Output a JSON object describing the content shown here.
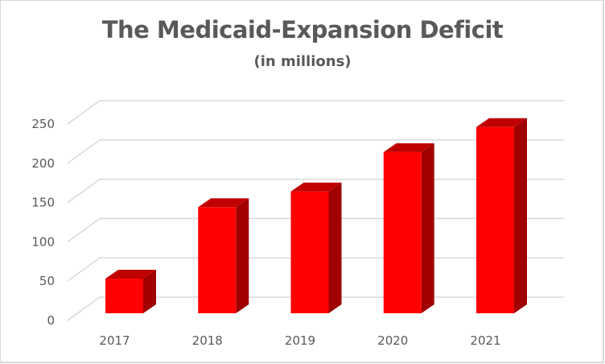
{
  "chart_data": {
    "type": "bar",
    "style": "3d-column",
    "title": "The Medicaid-Expansion Deficit",
    "subtitle": "(in millions)",
    "categories": [
      "2017",
      "2018",
      "2019",
      "2020",
      "2021"
    ],
    "values": [
      44,
      135,
      155,
      205,
      237
    ],
    "xlabel": "",
    "ylabel": "",
    "ylim": [
      0,
      250
    ],
    "yticks": [
      "0",
      "50",
      "100",
      "150",
      "200",
      "250"
    ],
    "grid": true,
    "legend": "none",
    "colors": {
      "front": "#ff0000",
      "top": "#c00000",
      "side": "#a00000",
      "grid": "#d9d9d9",
      "text": "#595959"
    }
  }
}
